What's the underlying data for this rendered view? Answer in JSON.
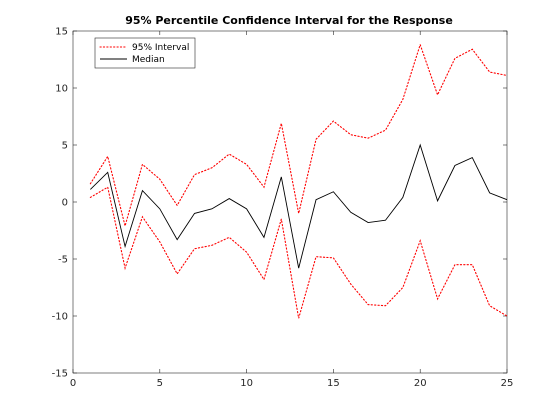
{
  "chart_data": {
    "type": "line",
    "title": "95% Percentile Confidence Interval for the Response",
    "xlabel": "",
    "ylabel": "",
    "xlim": [
      0,
      25
    ],
    "ylim": [
      -15,
      15
    ],
    "xticks": [
      0,
      5,
      10,
      15,
      20,
      25
    ],
    "yticks": [
      -15,
      -10,
      -5,
      0,
      5,
      10,
      15
    ],
    "x": [
      1,
      2,
      3,
      4,
      5,
      6,
      7,
      8,
      9,
      10,
      11,
      12,
      13,
      14,
      15,
      16,
      17,
      18,
      19,
      20,
      21,
      22,
      23,
      24,
      25
    ],
    "grid": false,
    "legend_placement": "top-left",
    "legend": [
      "95% Interval",
      "Median"
    ],
    "series": [
      {
        "name": "95% Interval",
        "role": "upper",
        "color": "#ff0000",
        "style": "dotted",
        "values": [
          1.6,
          4.0,
          -2.1,
          3.3,
          2.0,
          -0.3,
          2.4,
          3.0,
          4.2,
          3.3,
          1.3,
          6.9,
          -1.0,
          5.5,
          7.1,
          5.9,
          5.6,
          6.3,
          9.0,
          13.8,
          9.4,
          12.6,
          13.4,
          11.4,
          11.1
        ]
      },
      {
        "name": "95% Interval",
        "role": "lower",
        "color": "#ff0000",
        "style": "dotted",
        "values": [
          0.4,
          1.3,
          -5.8,
          -1.3,
          -3.5,
          -6.3,
          -4.1,
          -3.8,
          -3.1,
          -4.4,
          -6.8,
          -1.5,
          -10.2,
          -4.8,
          -4.9,
          -7.2,
          -9.0,
          -9.1,
          -7.5,
          -3.4,
          -8.5,
          -5.5,
          -5.5,
          -9.1,
          -10.0
        ]
      },
      {
        "name": "Median",
        "role": "median",
        "color": "#000000",
        "style": "solid",
        "values": [
          1.1,
          2.6,
          -3.9,
          1.0,
          -0.6,
          -3.3,
          -1.0,
          -0.6,
          0.3,
          -0.6,
          -3.1,
          2.2,
          -5.8,
          0.2,
          0.9,
          -0.9,
          -1.8,
          -1.6,
          0.4,
          5.0,
          0.1,
          3.2,
          3.9,
          0.8,
          0.2
        ]
      }
    ]
  }
}
